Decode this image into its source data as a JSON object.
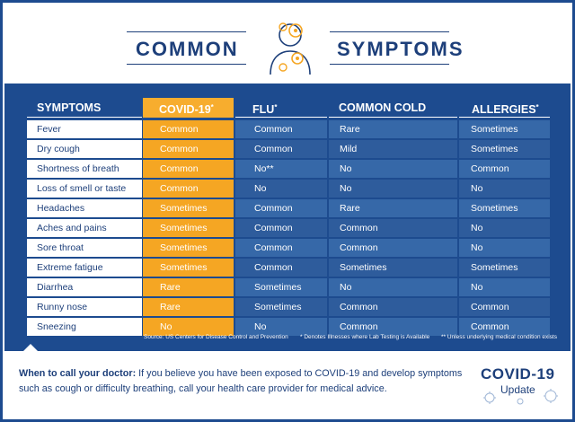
{
  "header": {
    "left_word": "COMMON",
    "right_word": "SYMPTOMS",
    "icon": "person-with-virus-icon"
  },
  "table": {
    "headers": [
      {
        "label": "SYMPTOMS",
        "mark": ""
      },
      {
        "label": "COVID-19",
        "mark": "*"
      },
      {
        "label": "FLU",
        "mark": "*"
      },
      {
        "label": "COMMON COLD",
        "mark": ""
      },
      {
        "label": "ALLERGIES",
        "mark": "*"
      }
    ],
    "rows": [
      {
        "symptom": "Fever",
        "covid": "Common",
        "flu": "Common",
        "cold": "Rare",
        "allergies": "Sometimes"
      },
      {
        "symptom": "Dry cough",
        "covid": "Common",
        "flu": "Common",
        "cold": "Mild",
        "allergies": "Sometimes"
      },
      {
        "symptom": "Shortness of breath",
        "covid": "Common",
        "flu": "No**",
        "cold": "No",
        "allergies": "Common"
      },
      {
        "symptom": "Loss of smell or taste",
        "covid": "Common",
        "flu": "No",
        "cold": "No",
        "allergies": "No"
      },
      {
        "symptom": "Headaches",
        "covid": "Sometimes",
        "flu": "Common",
        "cold": "Rare",
        "allergies": "Sometimes"
      },
      {
        "symptom": "Aches and pains",
        "covid": "Sometimes",
        "flu": "Common",
        "cold": "Common",
        "allergies": "No"
      },
      {
        "symptom": "Sore throat",
        "covid": "Sometimes",
        "flu": "Common",
        "cold": "Common",
        "allergies": "No"
      },
      {
        "symptom": "Extreme fatigue",
        "covid": "Sometimes",
        "flu": "Common",
        "cold": "Sometimes",
        "allergies": "Sometimes"
      },
      {
        "symptom": "Diarrhea",
        "covid": "Rare",
        "flu": "Sometimes",
        "cold": "No",
        "allergies": "No"
      },
      {
        "symptom": "Runny nose",
        "covid": "Rare",
        "flu": "Sometimes",
        "cold": "Common",
        "allergies": "Common"
      },
      {
        "symptom": "Sneezing",
        "covid": "No",
        "flu": "No",
        "cold": "Common",
        "allergies": "Common"
      }
    ]
  },
  "notes": {
    "source": "Source: US Centers for Disease Control and Prevention",
    "single_star": "* Denotes Illnesses where Lab Testing is Available",
    "double_star": "** Unless underlying medical condition exists"
  },
  "footer": {
    "lead": "When to call your doctor:",
    "text": " If you believe you have been exposed to COVID-19 and develop symptoms such as cough or difficulty breathing, call your health care provider for medical advice.",
    "badge_title": "COVID-19",
    "badge_subtitle": "Update"
  },
  "colors": {
    "navy": "#1d3f7a",
    "background_blue": "#1d4b8f",
    "covid_orange": "#f5a623",
    "cell_blue": "#3668a8",
    "cell_blue_alt": "#2e5c9c"
  }
}
